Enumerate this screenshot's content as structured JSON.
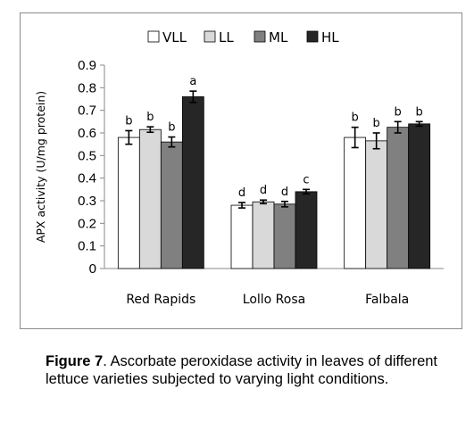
{
  "chart_data": {
    "type": "bar",
    "categories": [
      "Red Rapids",
      "Lollo Rosa",
      "Falbala"
    ],
    "series": [
      {
        "name": "VLL",
        "color": "#ffffff",
        "values": [
          0.58,
          0.28,
          0.58
        ],
        "errors": [
          0.03,
          0.012,
          0.045
        ],
        "labels": [
          "b",
          "d",
          "b"
        ]
      },
      {
        "name": "LL",
        "color": "#d9d9d9",
        "values": [
          0.615,
          0.295,
          0.565
        ],
        "errors": [
          0.012,
          0.008,
          0.035
        ],
        "labels": [
          "b",
          "d",
          "b"
        ]
      },
      {
        "name": "ML",
        "color": "#808080",
        "values": [
          0.56,
          0.285,
          0.625
        ],
        "errors": [
          0.022,
          0.012,
          0.025
        ],
        "labels": [
          "b",
          "d",
          "b"
        ]
      },
      {
        "name": "HL",
        "color": "#262626",
        "values": [
          0.76,
          0.34,
          0.64
        ],
        "errors": [
          0.025,
          0.01,
          0.01
        ],
        "labels": [
          "a",
          "c",
          "b"
        ]
      }
    ],
    "ylabel": "APX activity (U/mg protein)",
    "xlabel": "",
    "ylim": [
      0,
      0.9
    ],
    "yticks": [
      "0",
      "0.1",
      "0.2",
      "0.3",
      "0.4",
      "0.5",
      "0.6",
      "0.7",
      "0.8",
      "0.9"
    ],
    "grid": false,
    "legend_position": "top"
  },
  "caption": {
    "label": "Figure 7",
    "text": ". Ascorbate peroxidase activity in leaves of different lettuce varieties subjected to varying light conditions."
  }
}
